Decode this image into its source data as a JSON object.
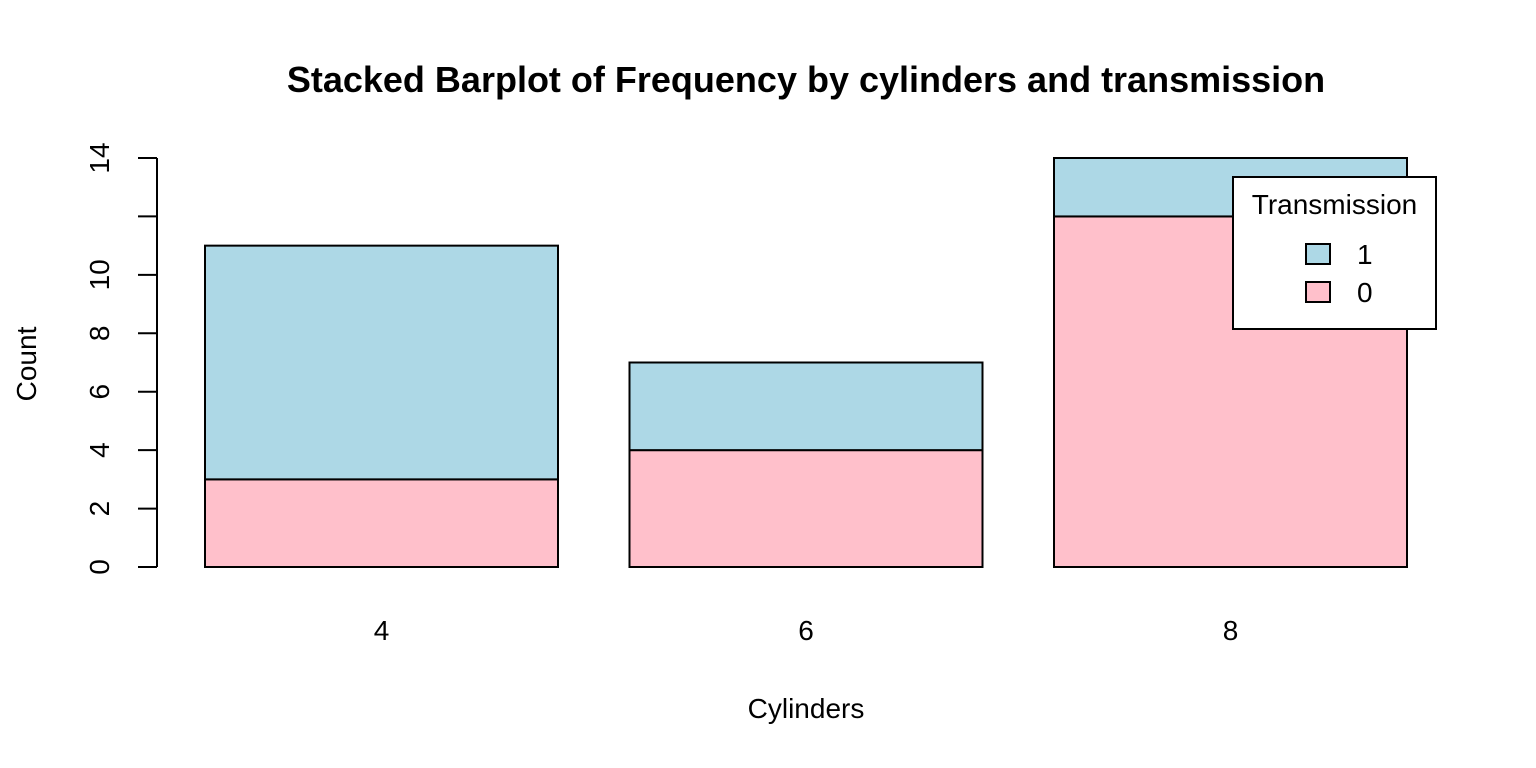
{
  "chart_data": {
    "type": "bar",
    "stacked": true,
    "title": "Stacked Barplot of Frequency by cylinders and transmission",
    "xlabel": "Cylinders",
    "ylabel": "Count",
    "categories": [
      "4",
      "6",
      "8"
    ],
    "series": [
      {
        "name": "0",
        "values": [
          3,
          4,
          12
        ],
        "color": "#ffc0cb"
      },
      {
        "name": "1",
        "values": [
          8,
          3,
          2
        ],
        "color": "#add8e6"
      }
    ],
    "ylim": [
      0,
      14
    ],
    "yticks": [
      0,
      2,
      4,
      6,
      8,
      10,
      12,
      14
    ],
    "ytick_labels": [
      "0",
      "2",
      "4",
      "6",
      "8",
      "10",
      "",
      "14"
    ],
    "grid": false,
    "legend": {
      "title": "Transmission",
      "placement": "top-right",
      "entries": [
        "1",
        "0"
      ]
    }
  }
}
